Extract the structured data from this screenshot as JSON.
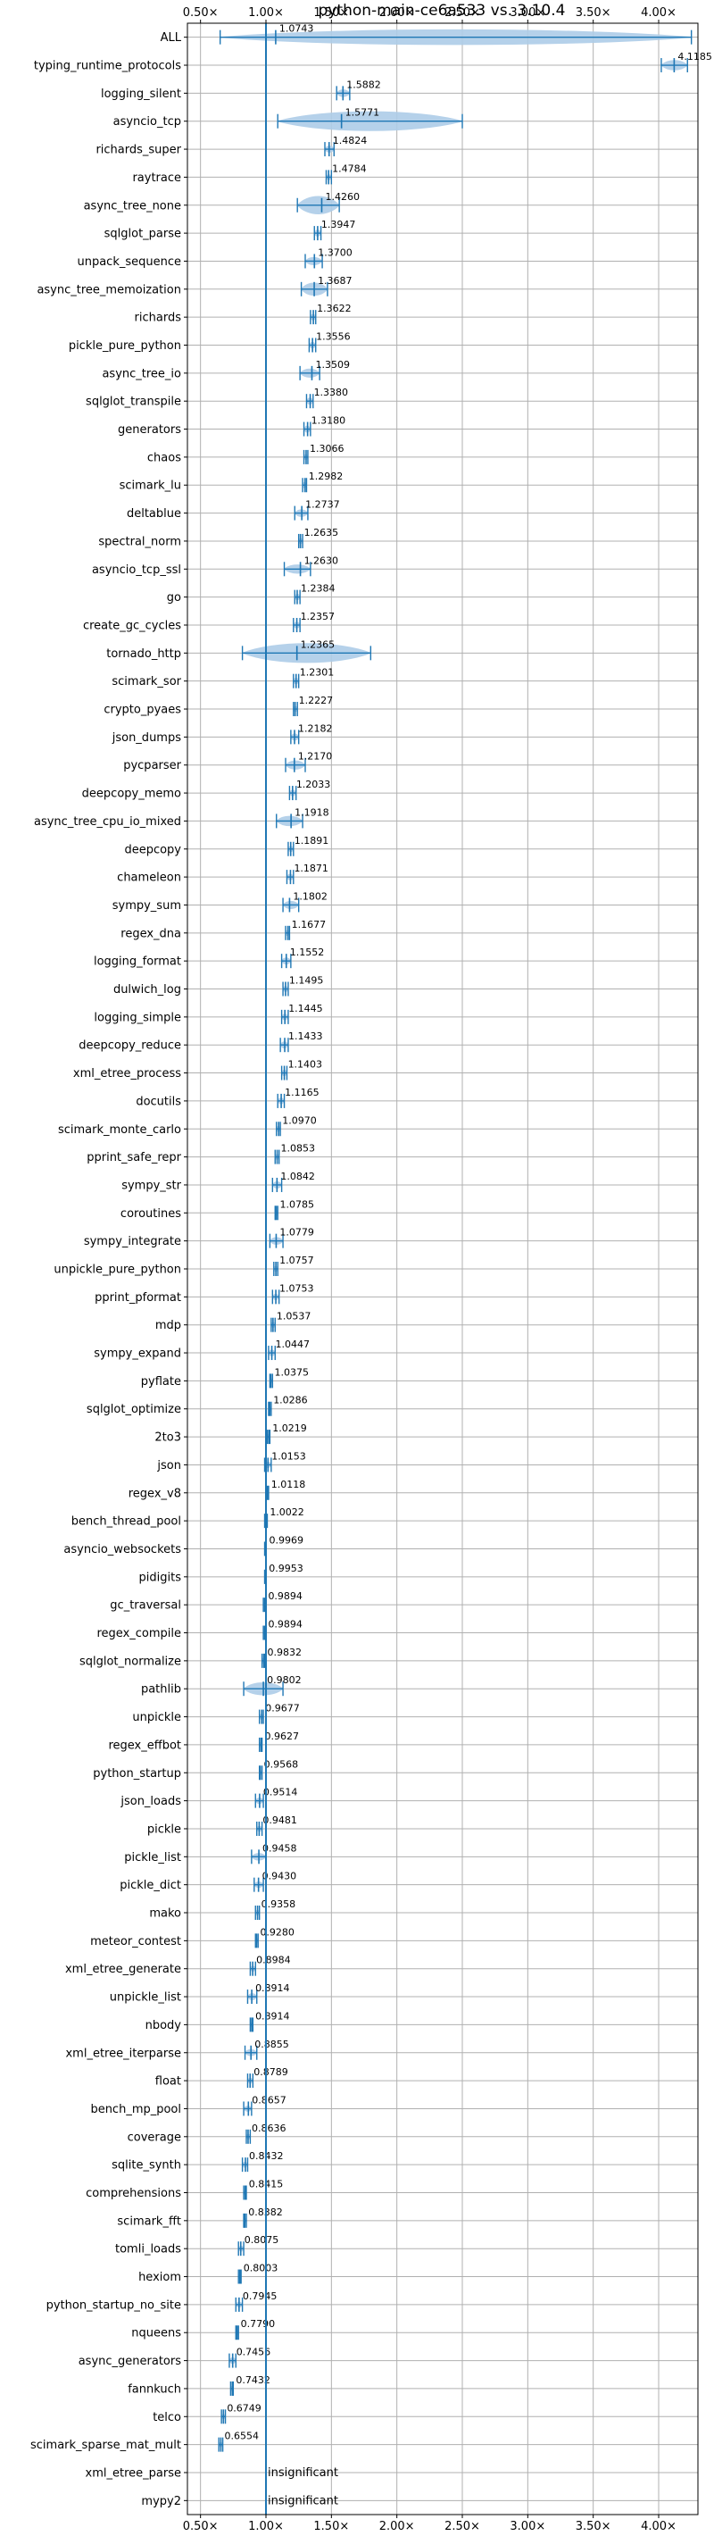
{
  "chart_data": {
    "type": "violin",
    "title": "python-main-ce6a533 vs. 3.10.4",
    "xlabel": "",
    "ylabel": "",
    "xlim": [
      0.4,
      4.3
    ],
    "grid": true,
    "reference_line": 1.0,
    "x_ticks": [
      {
        "value": 0.5,
        "label": "0.50×"
      },
      {
        "value": 1.0,
        "label": "1.00×"
      },
      {
        "value": 1.5,
        "label": "1.50×"
      },
      {
        "value": 2.0,
        "label": "2.00×"
      },
      {
        "value": 2.5,
        "label": "2.50×"
      },
      {
        "value": 3.0,
        "label": "3.00×"
      },
      {
        "value": 3.5,
        "label": "3.50×"
      },
      {
        "value": 4.0,
        "label": "4.00×"
      }
    ],
    "colors": {
      "violin": "#aecde8",
      "marker": "#1f77b4",
      "ref_line": "#1f77b4",
      "grid": "#b0b0b0"
    },
    "benchmarks": [
      {
        "name": "ALL",
        "label": "1.0743",
        "value": 1.0743,
        "lo": 0.65,
        "hi": 4.25,
        "spread": 0.2
      },
      {
        "name": "typing_runtime_protocols",
        "label": "4.1185",
        "value": 4.1185,
        "lo": 4.02,
        "hi": 4.22,
        "spread": 0.1
      },
      {
        "name": "logging_silent",
        "label": "1.5882",
        "value": 1.5882,
        "lo": 1.54,
        "hi": 1.64,
        "spread": 0.05
      },
      {
        "name": "asyncio_tcp",
        "label": "1.5771",
        "value": 1.5771,
        "lo": 1.09,
        "hi": 2.5,
        "spread": 0.4
      },
      {
        "name": "richards_super",
        "label": "1.4824",
        "value": 1.4824,
        "lo": 1.45,
        "hi": 1.52,
        "spread": 0.04
      },
      {
        "name": "raytrace",
        "label": "1.4784",
        "value": 1.4784,
        "lo": 1.46,
        "hi": 1.5,
        "spread": 0.02
      },
      {
        "name": "async_tree_none",
        "label": "1.4260",
        "value": 1.426,
        "lo": 1.24,
        "hi": 1.56,
        "spread": 0.25
      },
      {
        "name": "sqlglot_parse",
        "label": "1.3947",
        "value": 1.3947,
        "lo": 1.37,
        "hi": 1.42,
        "spread": 0.04
      },
      {
        "name": "unpack_sequence",
        "label": "1.3700",
        "value": 1.37,
        "lo": 1.3,
        "hi": 1.43,
        "spread": 0.06
      },
      {
        "name": "async_tree_memoization",
        "label": "1.3687",
        "value": 1.3687,
        "lo": 1.27,
        "hi": 1.47,
        "spread": 0.15
      },
      {
        "name": "richards",
        "label": "1.3622",
        "value": 1.3622,
        "lo": 1.34,
        "hi": 1.38,
        "spread": 0.03
      },
      {
        "name": "pickle_pure_python",
        "label": "1.3556",
        "value": 1.3556,
        "lo": 1.33,
        "hi": 1.38,
        "spread": 0.03
      },
      {
        "name": "async_tree_io",
        "label": "1.3509",
        "value": 1.3509,
        "lo": 1.26,
        "hi": 1.41,
        "spread": 0.08
      },
      {
        "name": "sqlglot_transpile",
        "label": "1.3380",
        "value": 1.338,
        "lo": 1.31,
        "hi": 1.36,
        "spread": 0.04
      },
      {
        "name": "generators",
        "label": "1.3180",
        "value": 1.318,
        "lo": 1.29,
        "hi": 1.34,
        "spread": 0.04
      },
      {
        "name": "chaos",
        "label": "1.3066",
        "value": 1.3066,
        "lo": 1.29,
        "hi": 1.32,
        "spread": 0.02
      },
      {
        "name": "scimark_lu",
        "label": "1.2982",
        "value": 1.2982,
        "lo": 1.28,
        "hi": 1.31,
        "spread": 0.03
      },
      {
        "name": "deltablue",
        "label": "1.2737",
        "value": 1.2737,
        "lo": 1.22,
        "hi": 1.32,
        "spread": 0.05
      },
      {
        "name": "spectral_norm",
        "label": "1.2635",
        "value": 1.2635,
        "lo": 1.25,
        "hi": 1.28,
        "spread": 0.02
      },
      {
        "name": "asyncio_tcp_ssl",
        "label": "1.2630",
        "value": 1.263,
        "lo": 1.14,
        "hi": 1.34,
        "spread": 0.08
      },
      {
        "name": "go",
        "label": "1.2384",
        "value": 1.2384,
        "lo": 1.22,
        "hi": 1.26,
        "spread": 0.03
      },
      {
        "name": "create_gc_cycles",
        "label": "1.2357",
        "value": 1.2357,
        "lo": 1.21,
        "hi": 1.26,
        "spread": 0.03
      },
      {
        "name": "tornado_http",
        "label": "1.2365",
        "value": 1.2365,
        "lo": 0.82,
        "hi": 1.8,
        "spread": 0.3
      },
      {
        "name": "scimark_sor",
        "label": "1.2301",
        "value": 1.2301,
        "lo": 1.21,
        "hi": 1.25,
        "spread": 0.03
      },
      {
        "name": "crypto_pyaes",
        "label": "1.2227",
        "value": 1.2227,
        "lo": 1.21,
        "hi": 1.24,
        "spread": 0.02
      },
      {
        "name": "json_dumps",
        "label": "1.2182",
        "value": 1.2182,
        "lo": 1.19,
        "hi": 1.25,
        "spread": 0.04
      },
      {
        "name": "pycparser",
        "label": "1.2170",
        "value": 1.217,
        "lo": 1.15,
        "hi": 1.3,
        "spread": 0.08
      },
      {
        "name": "deepcopy_memo",
        "label": "1.2033",
        "value": 1.2033,
        "lo": 1.18,
        "hi": 1.23,
        "spread": 0.03
      },
      {
        "name": "async_tree_cpu_io_mixed",
        "label": "1.1918",
        "value": 1.1918,
        "lo": 1.08,
        "hi": 1.28,
        "spread": 0.1
      },
      {
        "name": "deepcopy",
        "label": "1.1891",
        "value": 1.1891,
        "lo": 1.17,
        "hi": 1.21,
        "spread": 0.02
      },
      {
        "name": "chameleon",
        "label": "1.1871",
        "value": 1.1871,
        "lo": 1.16,
        "hi": 1.21,
        "spread": 0.03
      },
      {
        "name": "sympy_sum",
        "label": "1.1802",
        "value": 1.1802,
        "lo": 1.13,
        "hi": 1.25,
        "spread": 0.06
      },
      {
        "name": "regex_dna",
        "label": "1.1677",
        "value": 1.1677,
        "lo": 1.15,
        "hi": 1.18,
        "spread": 0.02
      },
      {
        "name": "logging_format",
        "label": "1.1552",
        "value": 1.1552,
        "lo": 1.12,
        "hi": 1.19,
        "spread": 0.04
      },
      {
        "name": "dulwich_log",
        "label": "1.1495",
        "value": 1.1495,
        "lo": 1.13,
        "hi": 1.17,
        "spread": 0.02
      },
      {
        "name": "logging_simple",
        "label": "1.1445",
        "value": 1.1445,
        "lo": 1.12,
        "hi": 1.17,
        "spread": 0.03
      },
      {
        "name": "deepcopy_reduce",
        "label": "1.1433",
        "value": 1.1433,
        "lo": 1.11,
        "hi": 1.17,
        "spread": 0.04
      },
      {
        "name": "xml_etree_process",
        "label": "1.1403",
        "value": 1.1403,
        "lo": 1.12,
        "hi": 1.16,
        "spread": 0.03
      },
      {
        "name": "docutils",
        "label": "1.1165",
        "value": 1.1165,
        "lo": 1.09,
        "hi": 1.14,
        "spread": 0.03
      },
      {
        "name": "scimark_monte_carlo",
        "label": "1.0970",
        "value": 1.097,
        "lo": 1.08,
        "hi": 1.11,
        "spread": 0.02
      },
      {
        "name": "pprint_safe_repr",
        "label": "1.0853",
        "value": 1.0853,
        "lo": 1.07,
        "hi": 1.1,
        "spread": 0.02
      },
      {
        "name": "sympy_str",
        "label": "1.0842",
        "value": 1.0842,
        "lo": 1.05,
        "hi": 1.12,
        "spread": 0.04
      },
      {
        "name": "coroutines",
        "label": "1.0785",
        "value": 1.0785,
        "lo": 1.07,
        "hi": 1.09,
        "spread": 0.02
      },
      {
        "name": "sympy_integrate",
        "label": "1.0779",
        "value": 1.0779,
        "lo": 1.03,
        "hi": 1.13,
        "spread": 0.05
      },
      {
        "name": "unpickle_pure_python",
        "label": "1.0757",
        "value": 1.0757,
        "lo": 1.06,
        "hi": 1.09,
        "spread": 0.02
      },
      {
        "name": "pprint_pformat",
        "label": "1.0753",
        "value": 1.0753,
        "lo": 1.05,
        "hi": 1.1,
        "spread": 0.03
      },
      {
        "name": "mdp",
        "label": "1.0537",
        "value": 1.0537,
        "lo": 1.04,
        "hi": 1.07,
        "spread": 0.02
      },
      {
        "name": "sympy_expand",
        "label": "1.0447",
        "value": 1.0447,
        "lo": 1.02,
        "hi": 1.07,
        "spread": 0.03
      },
      {
        "name": "pyflate",
        "label": "1.0375",
        "value": 1.0375,
        "lo": 1.03,
        "hi": 1.05,
        "spread": 0.01
      },
      {
        "name": "sqlglot_optimize",
        "label": "1.0286",
        "value": 1.0286,
        "lo": 1.02,
        "hi": 1.04,
        "spread": 0.02
      },
      {
        "name": "2to3",
        "label": "1.0219",
        "value": 1.0219,
        "lo": 1.01,
        "hi": 1.03,
        "spread": 0.02
      },
      {
        "name": "json",
        "label": "1.0153",
        "value": 1.0153,
        "lo": 0.99,
        "hi": 1.04,
        "spread": 0.03
      },
      {
        "name": "regex_v8",
        "label": "1.0118",
        "value": 1.0118,
        "lo": 1.0,
        "hi": 1.02,
        "spread": 0.01
      },
      {
        "name": "bench_thread_pool",
        "label": "1.0022",
        "value": 1.0022,
        "lo": 0.99,
        "hi": 1.01,
        "spread": 0.02
      },
      {
        "name": "asyncio_websockets",
        "label": "0.9969",
        "value": 0.9969,
        "lo": 0.99,
        "hi": 1.0,
        "spread": 0.01
      },
      {
        "name": "pidigits",
        "label": "0.9953",
        "value": 0.9953,
        "lo": 0.99,
        "hi": 1.0,
        "spread": 0.01
      },
      {
        "name": "gc_traversal",
        "label": "0.9894",
        "value": 0.9894,
        "lo": 0.98,
        "hi": 1.0,
        "spread": 0.02
      },
      {
        "name": "regex_compile",
        "label": "0.9894",
        "value": 0.9894,
        "lo": 0.98,
        "hi": 1.0,
        "spread": 0.02
      },
      {
        "name": "sqlglot_normalize",
        "label": "0.9832",
        "value": 0.9832,
        "lo": 0.97,
        "hi": 0.99,
        "spread": 0.02
      },
      {
        "name": "pathlib",
        "label": "0.9802",
        "value": 0.9802,
        "lo": 0.83,
        "hi": 1.13,
        "spread": 0.15
      },
      {
        "name": "unpickle",
        "label": "0.9677",
        "value": 0.9677,
        "lo": 0.95,
        "hi": 0.98,
        "spread": 0.02
      },
      {
        "name": "regex_effbot",
        "label": "0.9627",
        "value": 0.9627,
        "lo": 0.95,
        "hi": 0.97,
        "spread": 0.01
      },
      {
        "name": "python_startup",
        "label": "0.9568",
        "value": 0.9568,
        "lo": 0.95,
        "hi": 0.97,
        "spread": 0.01
      },
      {
        "name": "json_loads",
        "label": "0.9514",
        "value": 0.9514,
        "lo": 0.92,
        "hi": 0.98,
        "spread": 0.03
      },
      {
        "name": "pickle",
        "label": "0.9481",
        "value": 0.9481,
        "lo": 0.93,
        "hi": 0.97,
        "spread": 0.02
      },
      {
        "name": "pickle_list",
        "label": "0.9458",
        "value": 0.9458,
        "lo": 0.89,
        "hi": 1.0,
        "spread": 0.05
      },
      {
        "name": "pickle_dict",
        "label": "0.9430",
        "value": 0.943,
        "lo": 0.91,
        "hi": 0.98,
        "spread": 0.03
      },
      {
        "name": "mako",
        "label": "0.9358",
        "value": 0.9358,
        "lo": 0.92,
        "hi": 0.95,
        "spread": 0.02
      },
      {
        "name": "meteor_contest",
        "label": "0.9280",
        "value": 0.928,
        "lo": 0.92,
        "hi": 0.94,
        "spread": 0.01
      },
      {
        "name": "xml_etree_generate",
        "label": "0.8984",
        "value": 0.8984,
        "lo": 0.88,
        "hi": 0.92,
        "spread": 0.02
      },
      {
        "name": "unpickle_list",
        "label": "0.8914",
        "value": 0.8914,
        "lo": 0.86,
        "hi": 0.93,
        "spread": 0.04
      },
      {
        "name": "nbody",
        "label": "0.8914",
        "value": 0.8914,
        "lo": 0.88,
        "hi": 0.9,
        "spread": 0.01
      },
      {
        "name": "xml_etree_iterparse",
        "label": "0.8855",
        "value": 0.8855,
        "lo": 0.84,
        "hi": 0.93,
        "spread": 0.04
      },
      {
        "name": "float",
        "label": "0.8789",
        "value": 0.8789,
        "lo": 0.86,
        "hi": 0.9,
        "spread": 0.02
      },
      {
        "name": "bench_mp_pool",
        "label": "0.8657",
        "value": 0.8657,
        "lo": 0.83,
        "hi": 0.89,
        "spread": 0.02
      },
      {
        "name": "coverage",
        "label": "0.8636",
        "value": 0.8636,
        "lo": 0.85,
        "hi": 0.88,
        "spread": 0.02
      },
      {
        "name": "sqlite_synth",
        "label": "0.8432",
        "value": 0.8432,
        "lo": 0.82,
        "hi": 0.86,
        "spread": 0.02
      },
      {
        "name": "comprehensions",
        "label": "0.8415",
        "value": 0.8415,
        "lo": 0.83,
        "hi": 0.85,
        "spread": 0.01
      },
      {
        "name": "scimark_fft",
        "label": "0.8382",
        "value": 0.8382,
        "lo": 0.83,
        "hi": 0.85,
        "spread": 0.01
      },
      {
        "name": "tomli_loads",
        "label": "0.8075",
        "value": 0.8075,
        "lo": 0.79,
        "hi": 0.83,
        "spread": 0.02
      },
      {
        "name": "hexiom",
        "label": "0.8003",
        "value": 0.8003,
        "lo": 0.79,
        "hi": 0.81,
        "spread": 0.01
      },
      {
        "name": "python_startup_no_site",
        "label": "0.7945",
        "value": 0.7945,
        "lo": 0.77,
        "hi": 0.82,
        "spread": 0.02
      },
      {
        "name": "nqueens",
        "label": "0.7790",
        "value": 0.779,
        "lo": 0.77,
        "hi": 0.79,
        "spread": 0.01
      },
      {
        "name": "async_generators",
        "label": "0.7456",
        "value": 0.7456,
        "lo": 0.72,
        "hi": 0.77,
        "spread": 0.03
      },
      {
        "name": "fannkuch",
        "label": "0.7432",
        "value": 0.7432,
        "lo": 0.73,
        "hi": 0.75,
        "spread": 0.01
      },
      {
        "name": "telco",
        "label": "0.6749",
        "value": 0.6749,
        "lo": 0.66,
        "hi": 0.69,
        "spread": 0.01
      },
      {
        "name": "scimark_sparse_mat_mult",
        "label": "0.6554",
        "value": 0.6554,
        "lo": 0.64,
        "hi": 0.67,
        "spread": 0.01
      },
      {
        "name": "xml_etree_parse",
        "label": "insignificant",
        "value": null
      },
      {
        "name": "mypy2",
        "label": "insignificant",
        "value": null
      }
    ]
  }
}
